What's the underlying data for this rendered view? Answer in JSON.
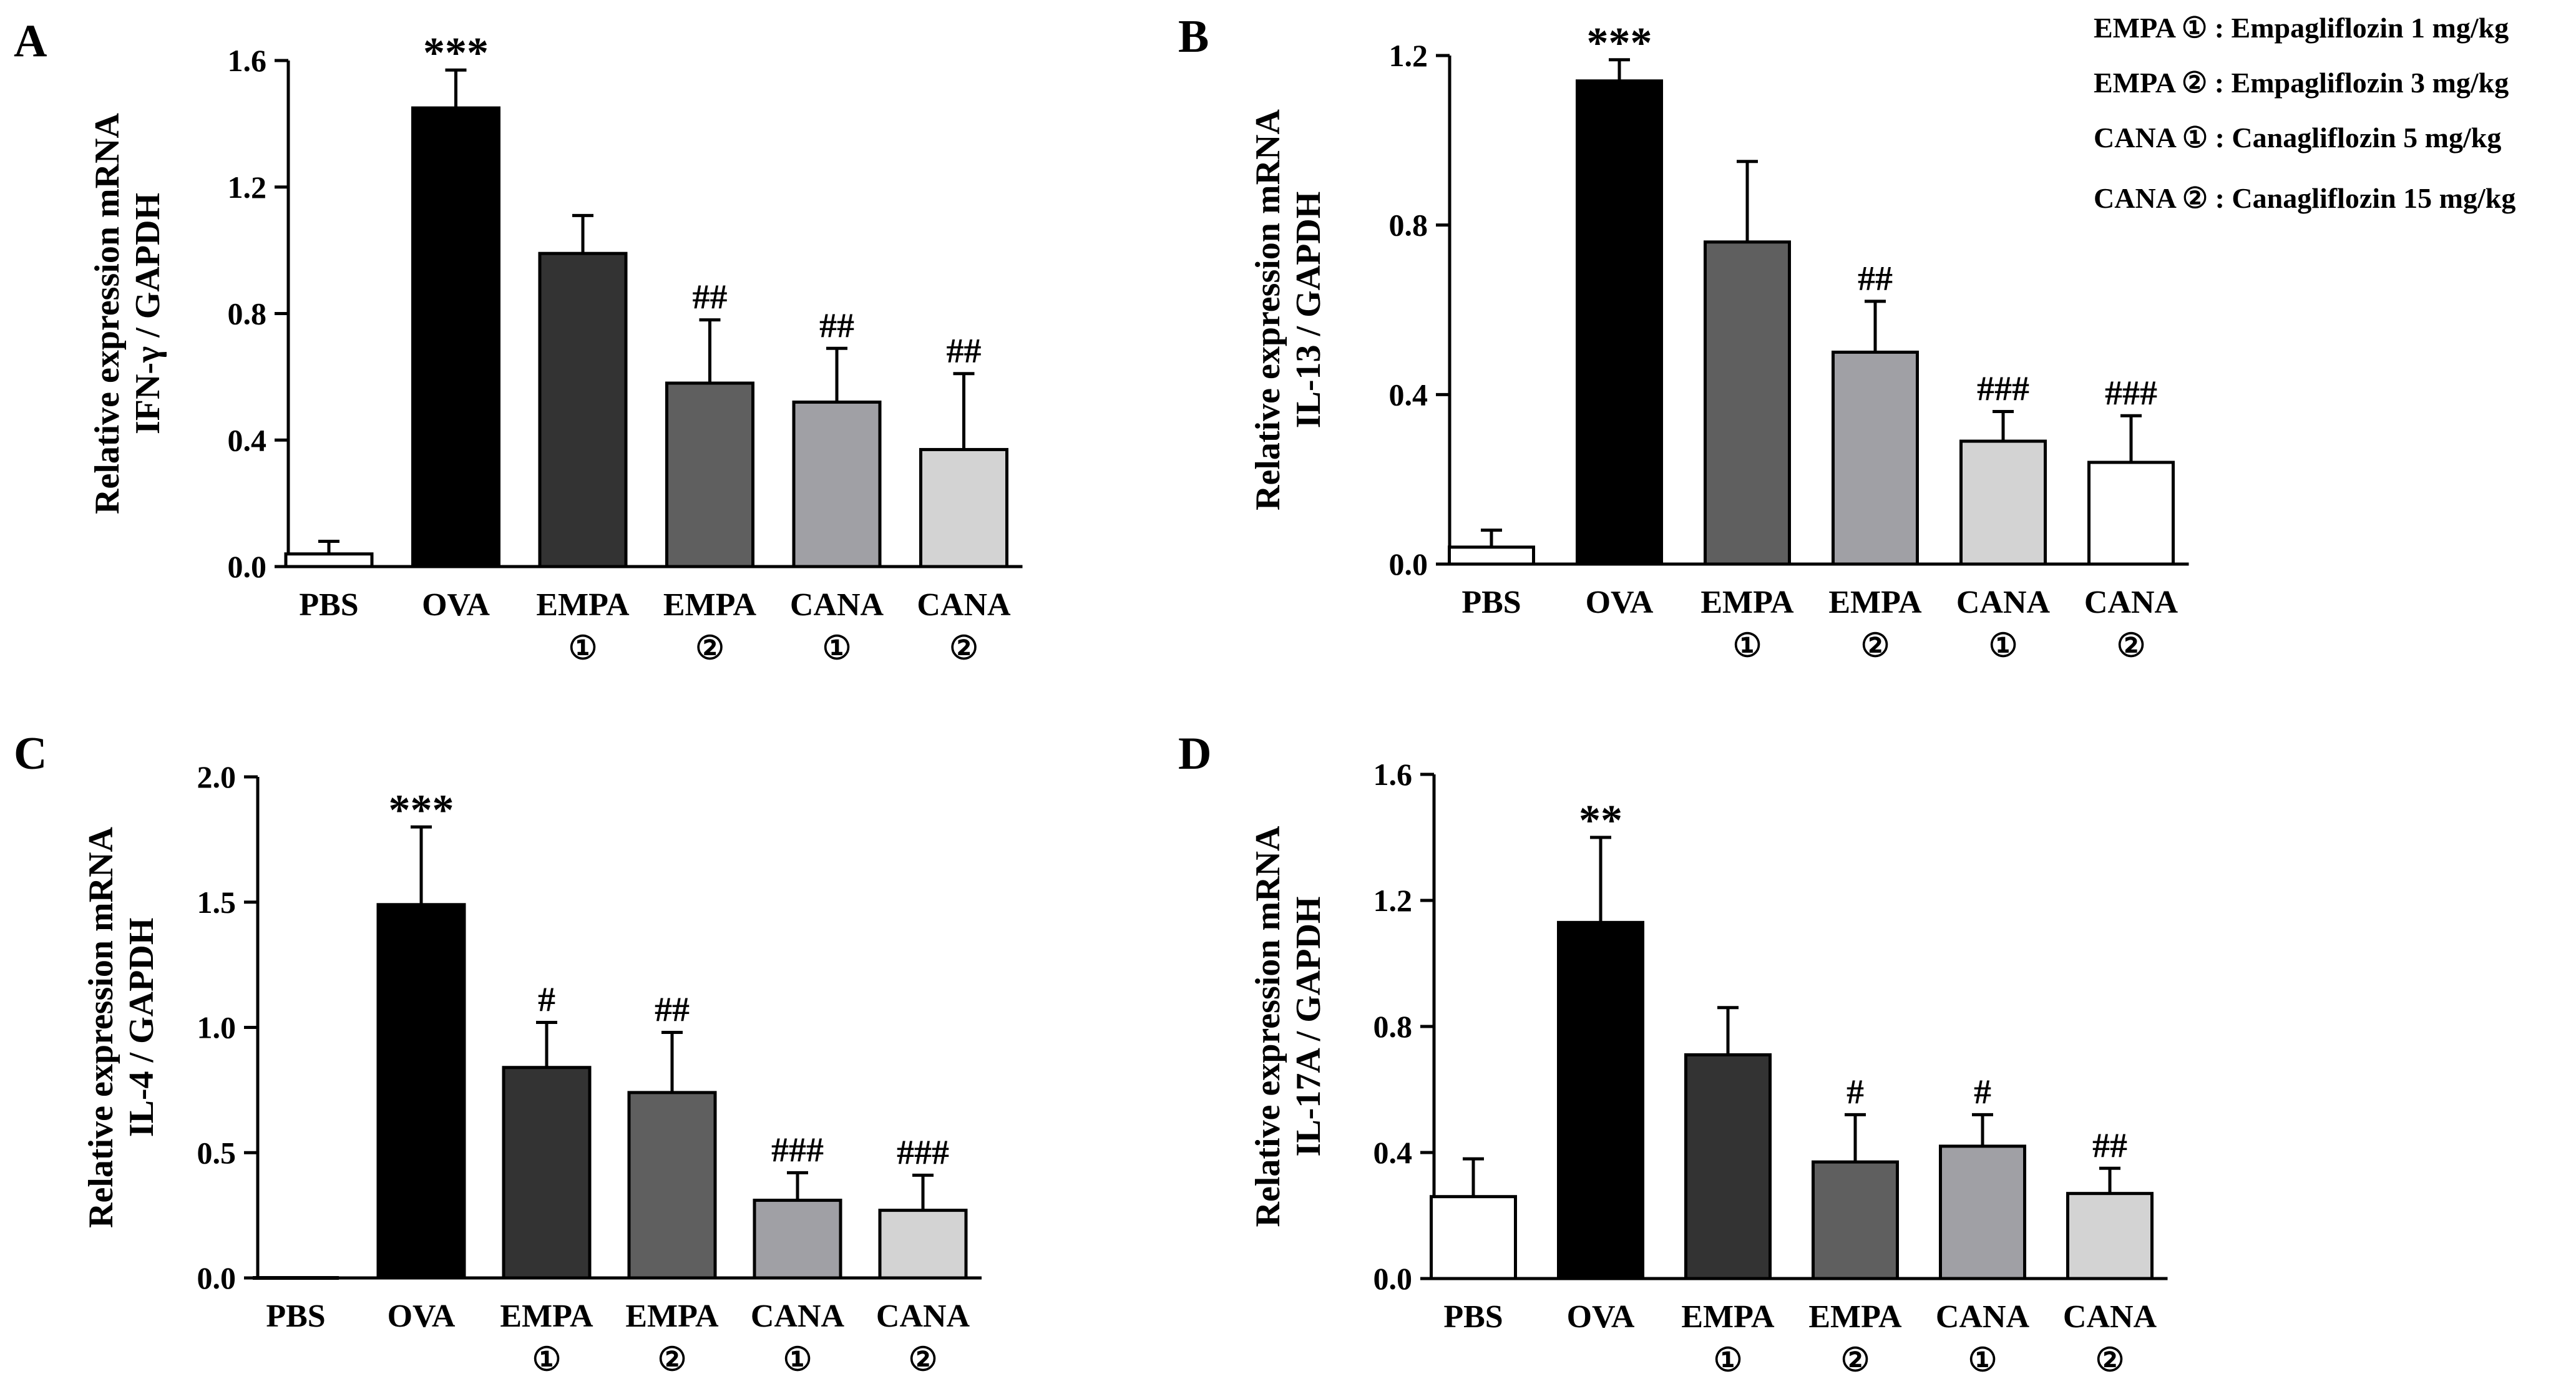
{
  "figure": {
    "legend": [
      {
        "abbr": "EMPA ①",
        "desc": "Empagliflozin 1 mg/kg"
      },
      {
        "abbr": "EMPA ②",
        "desc": "Empagliflozin 3 mg/kg"
      },
      {
        "abbr": "CANA ①",
        "desc": "Canagliflozin 5 mg/kg"
      },
      {
        "abbr": "CANA ②",
        "desc": "Canagliflozin 15 mg/kg"
      }
    ]
  },
  "chart_data": [
    {
      "panel": "A",
      "type": "bar",
      "ylabel_line1": "Relative expression mRNA",
      "ylabel_line2": "IFN-γ / GAPDH",
      "ylim": [
        0,
        1.6
      ],
      "yticks": [
        "0.0",
        "0.4",
        "0.8",
        "1.2",
        "1.6"
      ],
      "categories": [
        {
          "line1": "PBS",
          "line2": ""
        },
        {
          "line1": "OVA",
          "line2": ""
        },
        {
          "line1": "EMPA",
          "line2": "①"
        },
        {
          "line1": "EMPA",
          "line2": "②"
        },
        {
          "line1": "CANA",
          "line2": "①"
        },
        {
          "line1": "CANA",
          "line2": "②"
        }
      ],
      "values": [
        0.04,
        1.45,
        0.99,
        0.58,
        0.52,
        0.37
      ],
      "errors": [
        0.04,
        0.12,
        0.12,
        0.2,
        0.17,
        0.24
      ],
      "annotations": [
        "",
        "***",
        "",
        "##",
        "##",
        "##"
      ],
      "colors": [
        "#ffffff",
        "#000000",
        "#333333",
        "#5f5f5f",
        "#a0a0a5",
        "#d3d3d3"
      ]
    },
    {
      "panel": "B",
      "type": "bar",
      "ylabel_line1": "Relative expression mRNA",
      "ylabel_line2": "IL-13 / GAPDH",
      "ylim": [
        0,
        1.2
      ],
      "yticks": [
        "0.0",
        "0.4",
        "0.8",
        "1.2"
      ],
      "categories": [
        {
          "line1": "PBS",
          "line2": ""
        },
        {
          "line1": "OVA",
          "line2": ""
        },
        {
          "line1": "EMPA",
          "line2": "①"
        },
        {
          "line1": "EMPA",
          "line2": "②"
        },
        {
          "line1": "CANA",
          "line2": "①"
        },
        {
          "line1": "CANA",
          "line2": "②"
        }
      ],
      "values": [
        0.04,
        1.14,
        0.76,
        0.5,
        0.29,
        0.24
      ],
      "errors": [
        0.04,
        0.05,
        0.19,
        0.12,
        0.07,
        0.11
      ],
      "annotations": [
        "",
        "***",
        "",
        "##",
        "###",
        "###"
      ],
      "colors": [
        "#ffffff",
        "#000000",
        "#5f5f5f",
        "#a0a0a5",
        "#d3d3d3",
        "#ffffff"
      ]
    },
    {
      "panel": "C",
      "type": "bar",
      "ylabel_line1": "Relative expression mRNA",
      "ylabel_line2": "IL-4 / GAPDH",
      "ylim": [
        0,
        2.0
      ],
      "yticks": [
        "0.0",
        "0.5",
        "1.0",
        "1.5",
        "2.0"
      ],
      "categories": [
        {
          "line1": "PBS",
          "line2": ""
        },
        {
          "line1": "OVA",
          "line2": ""
        },
        {
          "line1": "EMPA",
          "line2": "①"
        },
        {
          "line1": "EMPA",
          "line2": "②"
        },
        {
          "line1": "CANA",
          "line2": "①"
        },
        {
          "line1": "CANA",
          "line2": "②"
        }
      ],
      "values": [
        0.0,
        1.49,
        0.84,
        0.74,
        0.31,
        0.27
      ],
      "errors": [
        0.0,
        0.31,
        0.18,
        0.24,
        0.11,
        0.14
      ],
      "annotations": [
        "",
        "***",
        "#",
        "##",
        "###",
        "###"
      ],
      "colors": [
        "#ffffff",
        "#000000",
        "#333333",
        "#5f5f5f",
        "#a0a0a5",
        "#d3d3d3"
      ]
    },
    {
      "panel": "D",
      "type": "bar",
      "ylabel_line1": "Relative expression mRNA",
      "ylabel_line2": "IL-17A / GAPDH",
      "ylim": [
        0,
        1.6
      ],
      "yticks": [
        "0.0",
        "0.4",
        "0.8",
        "1.2",
        "1.6"
      ],
      "categories": [
        {
          "line1": "PBS",
          "line2": ""
        },
        {
          "line1": "OVA",
          "line2": ""
        },
        {
          "line1": "EMPA",
          "line2": "①"
        },
        {
          "line1": "EMPA",
          "line2": "②"
        },
        {
          "line1": "CANA",
          "line2": "①"
        },
        {
          "line1": "CANA",
          "line2": "②"
        }
      ],
      "values": [
        0.26,
        1.13,
        0.71,
        0.37,
        0.42,
        0.27
      ],
      "errors": [
        0.12,
        0.27,
        0.15,
        0.15,
        0.1,
        0.08
      ],
      "annotations": [
        "",
        "**",
        "",
        "#",
        "#",
        "##"
      ],
      "colors": [
        "#ffffff",
        "#000000",
        "#333333",
        "#5f5f5f",
        "#a0a0a5",
        "#d3d3d3"
      ]
    }
  ]
}
